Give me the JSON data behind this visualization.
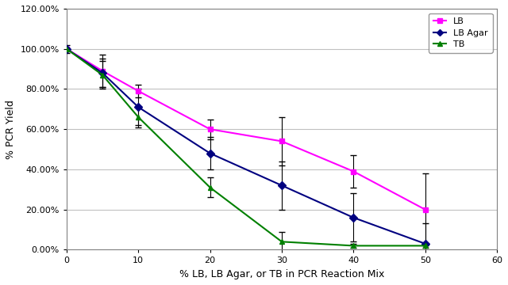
{
  "x": [
    0,
    5,
    10,
    20,
    30,
    40,
    50
  ],
  "LB_y": [
    1.0,
    0.89,
    0.79,
    0.6,
    0.54,
    0.39,
    0.2
  ],
  "LB_yerr": [
    0.0,
    0.08,
    0.03,
    0.05,
    0.12,
    0.08,
    0.18
  ],
  "LBAgar_y": [
    1.0,
    0.88,
    0.71,
    0.48,
    0.32,
    0.16,
    0.03
  ],
  "LBAgar_yerr": [
    0.0,
    0.07,
    0.09,
    0.08,
    0.12,
    0.12,
    0.1
  ],
  "TB_y": [
    1.0,
    0.87,
    0.66,
    0.31,
    0.04,
    0.02,
    0.02
  ],
  "TB_yerr": [
    0.02,
    0.07,
    0.05,
    0.05,
    0.05,
    0.01,
    0.01
  ],
  "xlabel": "% LB, LB Agar, or TB in PCR Reaction Mix",
  "ylabel": "% PCR Yield",
  "xlim": [
    0,
    60
  ],
  "xticks": [
    0,
    10,
    20,
    30,
    40,
    50,
    60
  ],
  "ylim": [
    0.0,
    1.2
  ],
  "yticks": [
    0.0,
    0.2,
    0.4,
    0.6,
    0.8,
    1.0,
    1.2
  ],
  "LB_color": "#FF00FF",
  "LBAgar_color": "#000080",
  "TB_color": "#008000",
  "bg_color": "#FFFFFF",
  "plot_bg_color": "#FFFFFF",
  "grid_color": "#C0C0C0",
  "legend_labels": [
    "LB",
    "LB Agar",
    "TB"
  ],
  "capsize": 3,
  "linewidth": 1.5,
  "markersize": 5,
  "xlabel_fontsize": 9,
  "ylabel_fontsize": 9,
  "tick_fontsize": 8,
  "legend_fontsize": 8
}
